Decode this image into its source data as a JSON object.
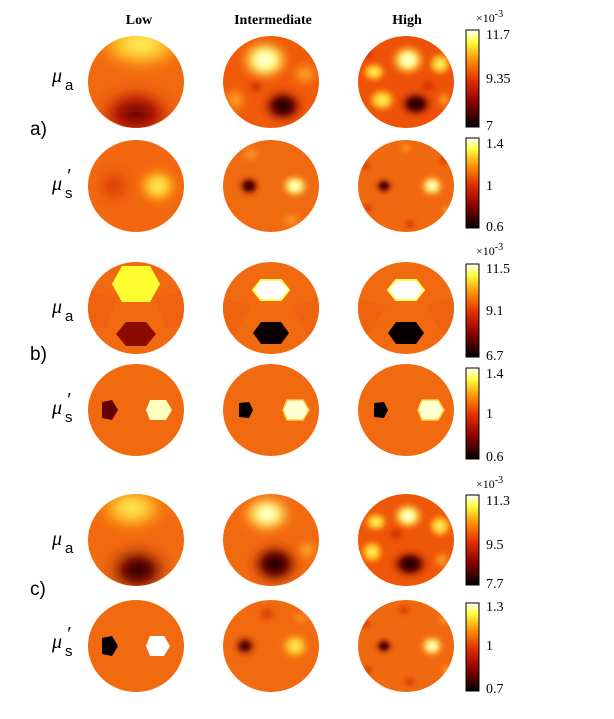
{
  "columns": [
    "Low",
    "Intermediate",
    "High"
  ],
  "panels": [
    {
      "letter": "a)",
      "rows": [
        {
          "param_symbol": "μ",
          "param_sub": "a",
          "prime": "",
          "colorbar": {
            "exponent_label": "×10-3",
            "max": "11.7",
            "mid": "9.35",
            "min": "7"
          }
        },
        {
          "param_symbol": "μ",
          "param_sub": "s",
          "prime": "′",
          "colorbar": {
            "exponent_label": "",
            "max": "1.4",
            "mid": "1",
            "min": "0.6"
          }
        }
      ]
    },
    {
      "letter": "b)",
      "rows": [
        {
          "param_symbol": "μ",
          "param_sub": "a",
          "prime": "",
          "colorbar": {
            "exponent_label": "×10-3",
            "max": "11.5",
            "mid": "9.1",
            "min": "6.7"
          }
        },
        {
          "param_symbol": "μ",
          "param_sub": "s",
          "prime": "′",
          "colorbar": {
            "exponent_label": "",
            "max": "1.4",
            "mid": "1",
            "min": "0.6"
          }
        }
      ]
    },
    {
      "letter": "c)",
      "rows": [
        {
          "param_symbol": "μ",
          "param_sub": "a",
          "prime": "",
          "colorbar": {
            "exponent_label": "×10-3",
            "max": "11.3",
            "mid": "9.5",
            "min": "7.7"
          }
        },
        {
          "param_symbol": "μ",
          "param_sub": "s",
          "prime": "′",
          "colorbar": {
            "exponent_label": "",
            "max": "1.3",
            "mid": "1",
            "min": "0.7"
          }
        }
      ]
    }
  ],
  "colormap": [
    "#000000",
    "#8b0000",
    "#e03000",
    "#ff8c00",
    "#ffff40",
    "#ffffff"
  ]
}
